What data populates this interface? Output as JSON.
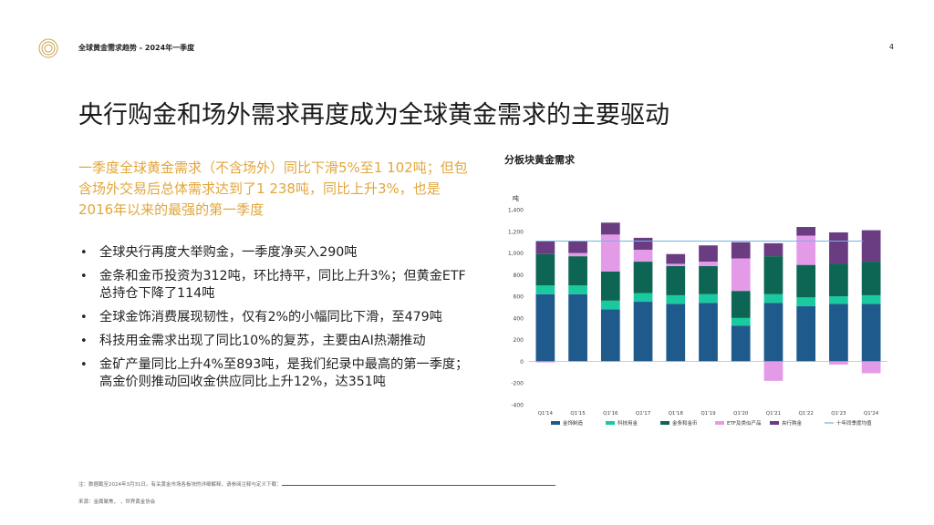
{
  "header": {
    "doc_title": "全球黄金需求趋势 - 2024年一季度",
    "page_number": "4"
  },
  "headline": "央行购金和场外需求再度成为全球黄金需求的主要驱动",
  "lead": "一季度全球黄金需求（不含场外）同比下滑5%至1 102吨；但包含场外交易后总体需求达到了1 238吨，同比上升3%，也是2016年以来的最强的第一季度",
  "bullets": [
    "全球央行再度大举购金，一季度净买入290吨",
    "金条和金币投资为312吨，环比持平，同比上升3%；但黄金ETF总持仓下降了114吨",
    "全球金饰消费展现韧性，仅有2%的小幅同比下滑，至479吨",
    "科技用金需求出现了同比10%的复苏，主要由AI热潮推动",
    "金矿产量同比上升4%至893吨，是我们纪录中最高的第一季度；高金价则推动回收金供应同比上升12%，达351吨"
  ],
  "footer": {
    "note": "注：数据截至2024年3月31日。有关黄金市场各板块的详细解释，请参阅注释与定义下载：",
    "source": "来源：金属聚焦，                        ，世界黄金协会"
  },
  "chart_data": {
    "type": "bar",
    "stacked": true,
    "title": "分板块黄金需求",
    "ylabel": "吨",
    "ylim": [
      -400,
      1400
    ],
    "yticks": [
      -400,
      -200,
      0,
      200,
      400,
      600,
      800,
      1000,
      1200,
      1400
    ],
    "categories": [
      "Q1'14",
      "Q1'15",
      "Q1'16",
      "Q1'17",
      "Q1'18",
      "Q1'19",
      "Q1'20",
      "Q1'21",
      "Q1'22",
      "Q1'23",
      "Q1'24"
    ],
    "series": [
      {
        "name": "金饰制造",
        "color": "#1f5a8c",
        "values": [
          620,
          620,
          480,
          550,
          530,
          540,
          330,
          540,
          510,
          530,
          530
        ]
      },
      {
        "name": "科技用金",
        "color": "#19c9a0",
        "values": [
          80,
          80,
          80,
          80,
          80,
          80,
          70,
          80,
          80,
          70,
          80
        ]
      },
      {
        "name": "金条和金币",
        "color": "#0d6653",
        "values": [
          290,
          270,
          270,
          290,
          270,
          260,
          250,
          350,
          300,
          300,
          310
        ]
      },
      {
        "name": "ETF及类似产品",
        "color": "#e39be8",
        "values": [
          -10,
          30,
          340,
          110,
          20,
          40,
          300,
          -180,
          270,
          -30,
          -110
        ]
      },
      {
        "name": "央行购金",
        "color": "#6a3d82",
        "values": [
          120,
          110,
          110,
          110,
          90,
          150,
          150,
          120,
          80,
          290,
          290
        ]
      }
    ],
    "ten_year_avg": {
      "name": "十年同季度均值",
      "color": "#6fb4e8",
      "value": 1110
    }
  }
}
